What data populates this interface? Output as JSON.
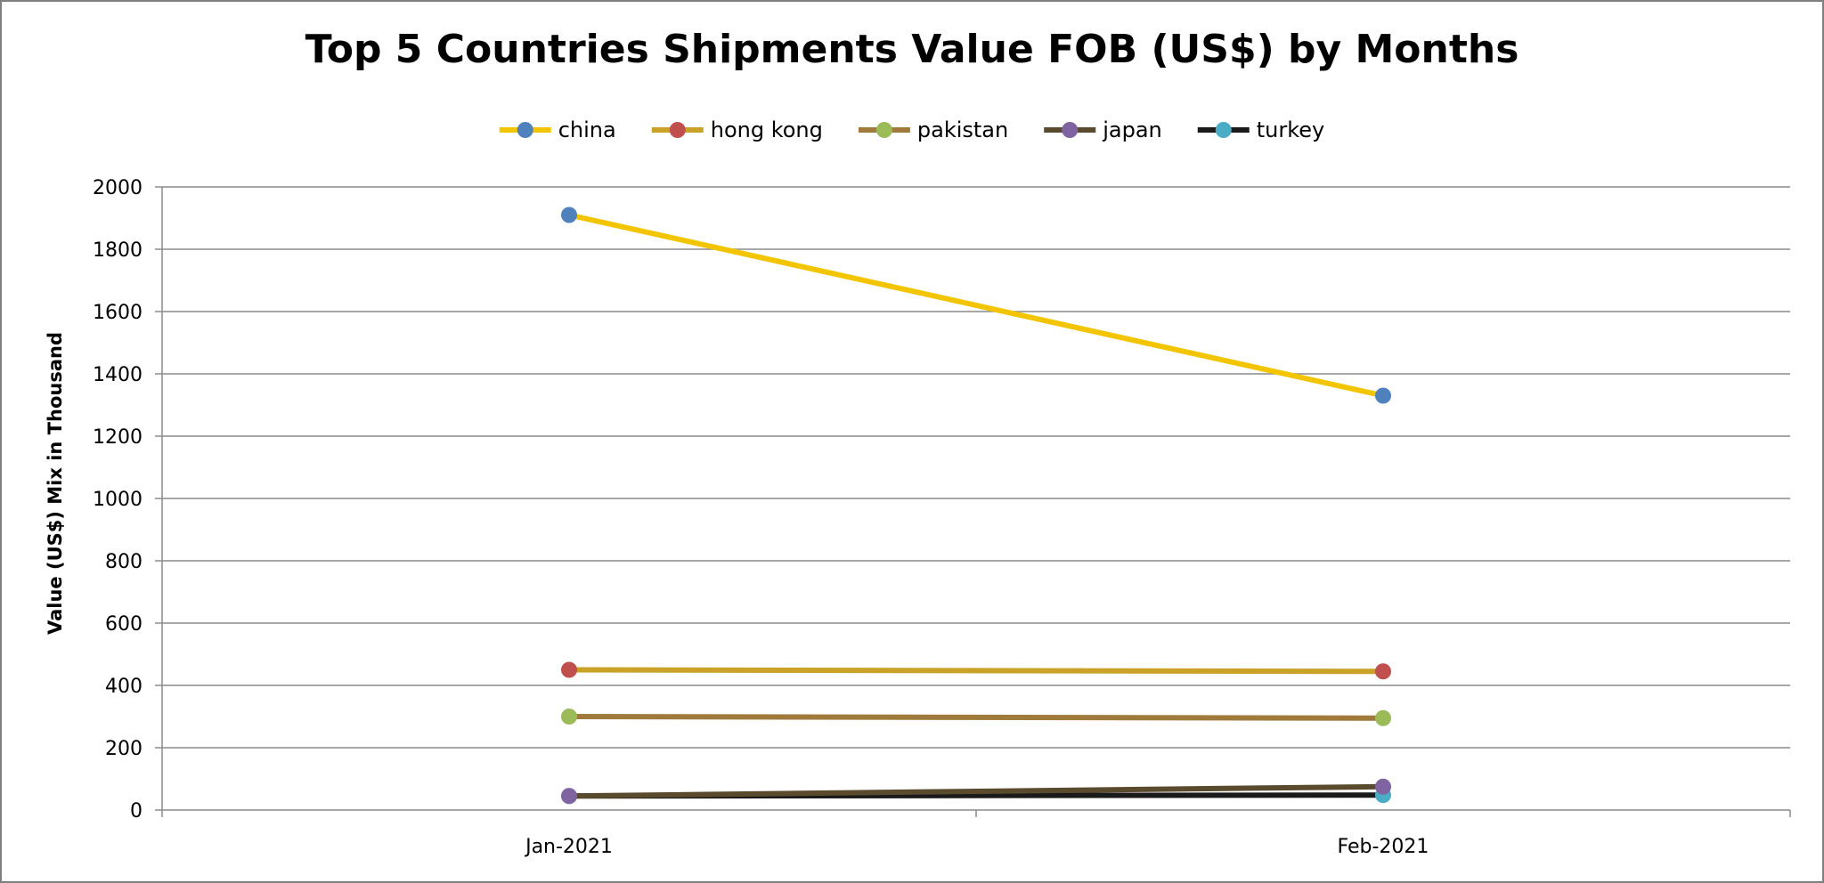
{
  "chart_data": {
    "type": "line",
    "title": "Top 5 Countries Shipments Value FOB (US$) by Months",
    "xlabel": "",
    "ylabel": "Value (US$) Mix in Thousand",
    "categories": [
      "Jan-2021",
      "Feb-2021"
    ],
    "ylim": [
      0,
      2000
    ],
    "yticks": [
      "0",
      "200",
      "400",
      "600",
      "800",
      "1000",
      "1200",
      "1400",
      "1600",
      "1800",
      "2000"
    ],
    "grid": true,
    "legend_position": "top",
    "series": [
      {
        "name": "china",
        "values": [
          1910,
          1330
        ],
        "line_color": "#f2c500",
        "marker_color": "#4f81bd"
      },
      {
        "name": "hong kong",
        "values": [
          450,
          445
        ],
        "line_color": "#c9a227",
        "marker_color": "#c0504d"
      },
      {
        "name": "pakistan",
        "values": [
          300,
          295
        ],
        "line_color": "#a07a3a",
        "marker_color": "#9bbb59"
      },
      {
        "name": "japan",
        "values": [
          45,
          75
        ],
        "line_color": "#5a4a2e",
        "marker_color": "#8064a2"
      },
      {
        "name": "turkey",
        "values": [
          45,
          48
        ],
        "line_color": "#1a1a1a",
        "marker_color": "#4bacc6"
      }
    ]
  }
}
